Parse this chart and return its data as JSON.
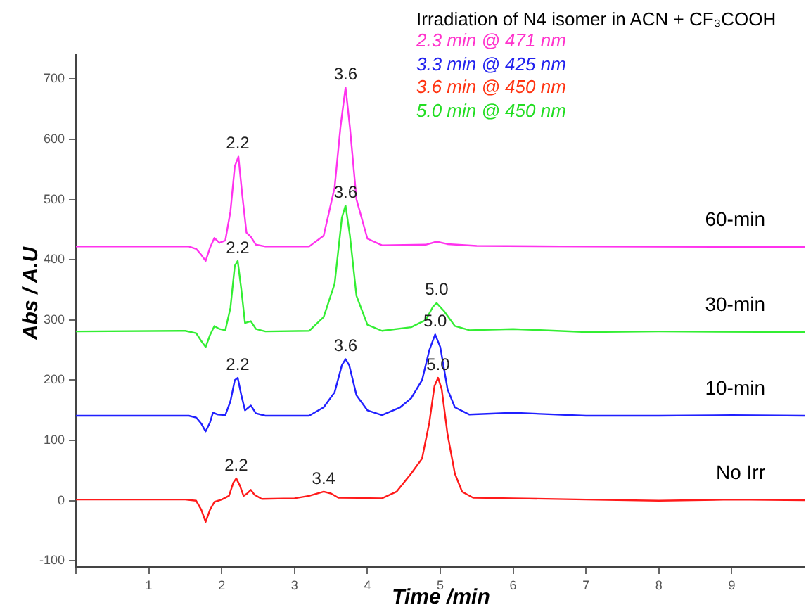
{
  "chart_data": {
    "type": "line",
    "title": "Irradiation of N4 isomer in ACN + CF₃COOH",
    "xlabel": "Time /min",
    "ylabel": "Abs / A.U",
    "xlim": [
      0,
      10
    ],
    "xticks": [
      {
        "value": 0,
        "label": null
      },
      1,
      2,
      3,
      4,
      5,
      6,
      7,
      8,
      9
    ],
    "ylim": [
      -110,
      740
    ],
    "yticks": [
      -100,
      0,
      100,
      200,
      300,
      400,
      500,
      600,
      700
    ],
    "grid": false,
    "legend": false,
    "marker": "none",
    "line_style": "solid",
    "series": [
      {
        "name": "No Irr",
        "color": "#ff1a1a",
        "x": [
          0,
          1.5,
          1.65,
          1.72,
          1.78,
          1.84,
          1.9,
          2.0,
          2.1,
          2.16,
          2.2,
          2.25,
          2.3,
          2.35,
          2.4,
          2.45,
          2.55,
          3.0,
          3.2,
          3.4,
          3.5,
          3.6,
          4.2,
          4.4,
          4.6,
          4.75,
          4.85,
          4.92,
          4.97,
          5.02,
          5.1,
          5.2,
          5.3,
          5.45,
          6,
          7,
          8,
          9,
          10
        ],
        "values": [
          2,
          2,
          0,
          -15,
          -35,
          -15,
          -2,
          2,
          8,
          30,
          37,
          25,
          8,
          12,
          18,
          10,
          3,
          4,
          8,
          15,
          12,
          5,
          4,
          15,
          45,
          70,
          130,
          190,
          204,
          185,
          110,
          45,
          15,
          5,
          4,
          2,
          0,
          2,
          1
        ]
      },
      {
        "name": "10-min",
        "color": "#2020ff",
        "x": [
          0,
          1.55,
          1.65,
          1.72,
          1.78,
          1.84,
          1.88,
          1.95,
          2.05,
          2.12,
          2.18,
          2.22,
          2.27,
          2.32,
          2.4,
          2.47,
          2.6,
          3.2,
          3.4,
          3.55,
          3.65,
          3.7,
          3.75,
          3.85,
          4.0,
          4.2,
          4.45,
          4.6,
          4.75,
          4.85,
          4.93,
          5.0,
          5.1,
          5.2,
          5.4,
          6.0,
          7,
          8,
          9,
          10
        ],
        "values": [
          141,
          141,
          138,
          128,
          115,
          130,
          146,
          143,
          142,
          165,
          200,
          204,
          175,
          150,
          158,
          145,
          141,
          141,
          155,
          180,
          225,
          235,
          225,
          175,
          150,
          142,
          155,
          170,
          200,
          250,
          276,
          255,
          185,
          155,
          143,
          146,
          141,
          141,
          142,
          141
        ]
      },
      {
        "name": "30-min",
        "color": "#33ee33",
        "x": [
          0,
          1.5,
          1.65,
          1.72,
          1.78,
          1.84,
          1.9,
          1.97,
          2.05,
          2.12,
          2.18,
          2.22,
          2.27,
          2.32,
          2.4,
          2.47,
          2.6,
          3.2,
          3.4,
          3.55,
          3.65,
          3.7,
          3.76,
          3.85,
          4.0,
          4.2,
          4.6,
          4.8,
          4.9,
          4.95,
          5.05,
          5.2,
          5.4,
          6.0,
          7,
          8,
          10
        ],
        "values": [
          281,
          282,
          278,
          265,
          255,
          275,
          290,
          285,
          283,
          320,
          390,
          398,
          350,
          295,
          298,
          285,
          281,
          282,
          305,
          360,
          470,
          490,
          440,
          340,
          292,
          282,
          288,
          300,
          322,
          328,
          315,
          290,
          283,
          285,
          280,
          281,
          280
        ]
      },
      {
        "name": "60-min",
        "color": "#ff33ee",
        "x": [
          0,
          1.55,
          1.65,
          1.72,
          1.78,
          1.84,
          1.9,
          1.97,
          2.05,
          2.12,
          2.18,
          2.23,
          2.28,
          2.34,
          2.4,
          2.47,
          2.6,
          3.2,
          3.4,
          3.55,
          3.63,
          3.7,
          3.76,
          3.85,
          4.0,
          4.2,
          4.8,
          4.95,
          5.1,
          5.5,
          7,
          10
        ],
        "values": [
          422,
          422,
          418,
          408,
          398,
          420,
          436,
          428,
          432,
          480,
          555,
          571,
          510,
          445,
          438,
          425,
          422,
          422,
          440,
          520,
          620,
          686,
          620,
          500,
          435,
          424,
          425,
          430,
          426,
          423,
          422,
          421
        ]
      }
    ],
    "annotations": [
      "2.3 min @ 471 nm",
      "3.3 min @ 425 nm",
      "3.6 min @ 450 nm",
      "5.0 min @ 450 nm",
      {
        "text": "2.2",
        "x": 2.22,
        "y": 571
      },
      {
        "text": "3.6",
        "x": 3.7,
        "y": 686
      },
      {
        "text": "2.2",
        "x": 2.22,
        "y": 398
      },
      {
        "text": "3.6",
        "x": 3.7,
        "y": 490
      },
      {
        "text": "5.0",
        "x": 4.95,
        "y": 328
      },
      {
        "text": "2.2",
        "x": 2.22,
        "y": 204
      },
      {
        "text": "3.6",
        "x": 3.7,
        "y": 235
      },
      {
        "text": "5.0",
        "x": 4.93,
        "y": 276
      },
      {
        "text": "2.2",
        "x": 2.2,
        "y": 37
      },
      {
        "text": "3.4",
        "x": 3.4,
        "y": 15
      },
      {
        "text": "5.0",
        "x": 4.97,
        "y": 204
      }
    ]
  }
}
